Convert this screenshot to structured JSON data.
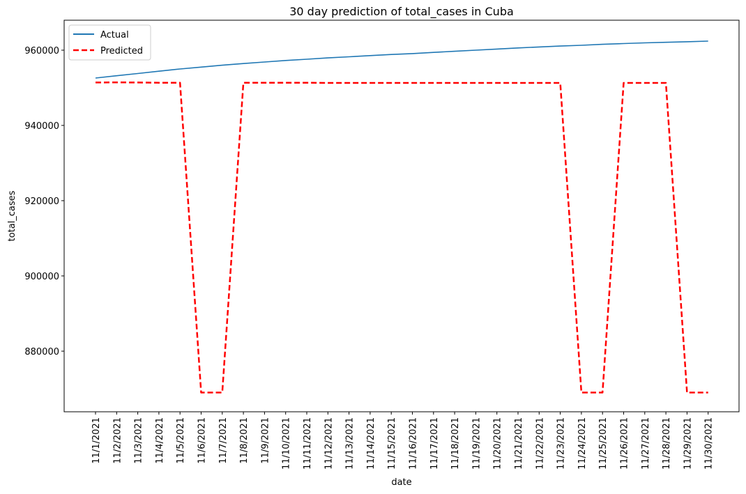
{
  "chart_data": {
    "type": "line",
    "title": "30 day prediction of total_cases in Cuba",
    "xlabel": "date",
    "ylabel": "total_cases",
    "x": [
      "11/1/2021",
      "11/2/2021",
      "11/3/2021",
      "11/4/2021",
      "11/5/2021",
      "11/6/2021",
      "11/7/2021",
      "11/8/2021",
      "11/9/2021",
      "11/10/2021",
      "11/11/2021",
      "11/12/2021",
      "11/13/2021",
      "11/14/2021",
      "11/15/2021",
      "11/16/2021",
      "11/17/2021",
      "11/18/2021",
      "11/19/2021",
      "11/20/2021",
      "11/21/2021",
      "11/22/2021",
      "11/23/2021",
      "11/24/2021",
      "11/25/2021",
      "11/26/2021",
      "11/27/2021",
      "11/28/2021",
      "11/29/2021",
      "11/30/2021"
    ],
    "yticks": [
      880000,
      900000,
      920000,
      940000,
      960000
    ],
    "ylim": [
      864000,
      967000
    ],
    "legend_position": "top-left",
    "grid": false,
    "series": [
      {
        "name": "Actual",
        "color": "#1f77b4",
        "style": "solid",
        "values": [
          952600,
          953200,
          953800,
          954400,
          955000,
          955500,
          956000,
          956450,
          956850,
          957250,
          957600,
          957950,
          958250,
          958550,
          958850,
          959100,
          959400,
          959700,
          960000,
          960300,
          960600,
          960850,
          961100,
          961300,
          961550,
          961750,
          961950,
          962100,
          962250,
          962400
        ]
      },
      {
        "name": "Predicted",
        "color": "#ff0000",
        "style": "dashed",
        "values": [
          951400,
          951450,
          951400,
          951350,
          951350,
          869000,
          869000,
          951350,
          951350,
          951350,
          951350,
          951300,
          951300,
          951300,
          951300,
          951300,
          951300,
          951300,
          951300,
          951300,
          951300,
          951300,
          951300,
          869000,
          869000,
          951300,
          951300,
          951300,
          869000,
          869000
        ]
      }
    ]
  }
}
